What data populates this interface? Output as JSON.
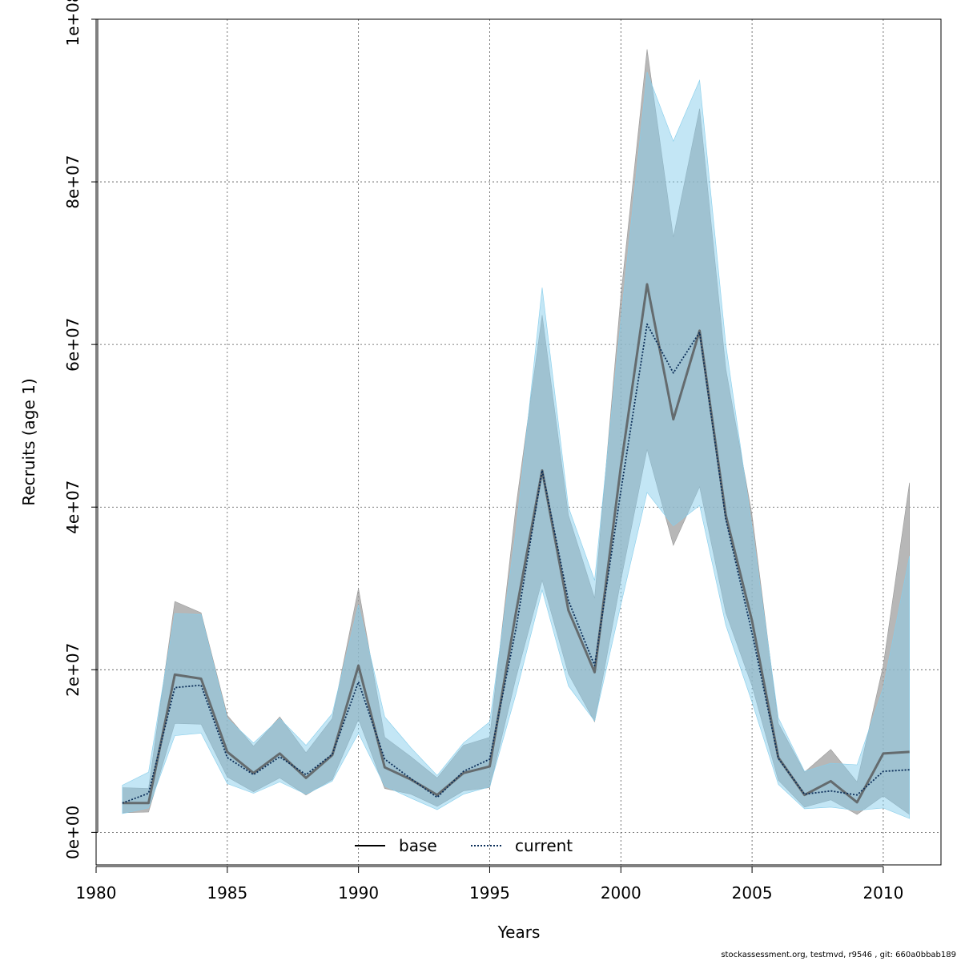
{
  "chart_data": {
    "type": "area",
    "title": "",
    "xlabel": "Years",
    "ylabel": "Recruits (age 1)",
    "xlim": [
      1980,
      2012.2
    ],
    "ylim": [
      -4000000,
      100000000
    ],
    "x_ticks": [
      1980,
      1985,
      1990,
      1995,
      2000,
      2005,
      2010
    ],
    "x_tick_labels": [
      "1980",
      "1985",
      "1990",
      "1995",
      "2000",
      "2005",
      "2010"
    ],
    "y_ticks": [
      0,
      20000000,
      40000000,
      60000000,
      80000000,
      100000000
    ],
    "y_tick_labels": [
      "0e+00",
      "2e+07",
      "4e+07",
      "6e+07",
      "8e+07",
      "1e+08"
    ],
    "grid": true,
    "legend_position": "bottom",
    "x": [
      1981,
      1982,
      1983,
      1984,
      1985,
      1986,
      1987,
      1988,
      1989,
      1990,
      1991,
      1992,
      1993,
      1994,
      1995,
      1996,
      1997,
      1998,
      1999,
      2000,
      2001,
      2002,
      2003,
      2004,
      2005,
      2006,
      2007,
      2008,
      2009,
      2010,
      2011
    ],
    "series": [
      {
        "name": "base",
        "line_style": "solid",
        "line_color": "#555555",
        "band_color": "#999999",
        "values": [
          3600000,
          3600000,
          19400000,
          18900000,
          9900000,
          7300000,
          9700000,
          6700000,
          9500000,
          20500000,
          8000000,
          6500000,
          4600000,
          7300000,
          8100000,
          27000000,
          44500000,
          27300000,
          19700000,
          45000000,
          67400000,
          50800000,
          61700000,
          39000000,
          26000000,
          9200000,
          4600000,
          6300000,
          3700000,
          9700000,
          9900000
        ],
        "lower": [
          2400000,
          2500000,
          13400000,
          13300000,
          6800000,
          5000000,
          6700000,
          4600000,
          6500000,
          13900000,
          5400000,
          4700000,
          3200000,
          5100000,
          5500000,
          19000000,
          31000000,
          19500000,
          13600000,
          31000000,
          47100000,
          35300000,
          42500000,
          27000000,
          18000000,
          6400000,
          3100000,
          4000000,
          2200000,
          4500000,
          2200000
        ],
        "upper": [
          5500000,
          5400000,
          28400000,
          27000000,
          14400000,
          10600000,
          14200000,
          9800000,
          14000000,
          30000000,
          11700000,
          9300000,
          6700000,
          10700000,
          11700000,
          40000000,
          63600000,
          39000000,
          28800000,
          66000000,
          96300000,
          73200000,
          89000000,
          57000000,
          39000000,
          13400000,
          7400000,
          10200000,
          6200000,
          20500000,
          43000000
        ]
      },
      {
        "name": "current",
        "line_style": "dotted",
        "line_color": "#0b2e59",
        "band_color": "#87ceeb",
        "values": [
          3600000,
          4800000,
          17800000,
          18100000,
          9200000,
          7100000,
          9300000,
          7100000,
          9600000,
          18500000,
          9000000,
          6600000,
          4300000,
          7500000,
          9000000,
          25000000,
          44500000,
          28500000,
          20500000,
          42000000,
          62500000,
          56500000,
          61500000,
          38500000,
          24500000,
          9100000,
          4700000,
          5100000,
          4600000,
          7500000,
          7700000
        ],
        "lower": [
          2300000,
          3000000,
          11900000,
          12200000,
          6000000,
          4800000,
          6200000,
          4700000,
          6300000,
          12200000,
          5700000,
          4200000,
          2800000,
          4700000,
          5600000,
          17000000,
          29800000,
          18000000,
          13700000,
          28000000,
          41800000,
          37700000,
          40200000,
          25500000,
          16000000,
          5900000,
          2900000,
          3100000,
          2700000,
          3000000,
          1700000
        ],
        "upper": [
          5800000,
          7400000,
          26900000,
          26800000,
          14000000,
          11000000,
          14000000,
          10700000,
          14600000,
          28000000,
          14200000,
          10400000,
          7000000,
          11000000,
          13600000,
          37000000,
          67000000,
          40000000,
          31000000,
          63000000,
          93500000,
          85000000,
          92500000,
          60000000,
          37500000,
          14100000,
          7500000,
          8500000,
          8300000,
          17800000,
          34000000
        ]
      }
    ]
  },
  "footer_text": "stockassessment.org, testmvd, r9546 , git: 660a0bbab189"
}
